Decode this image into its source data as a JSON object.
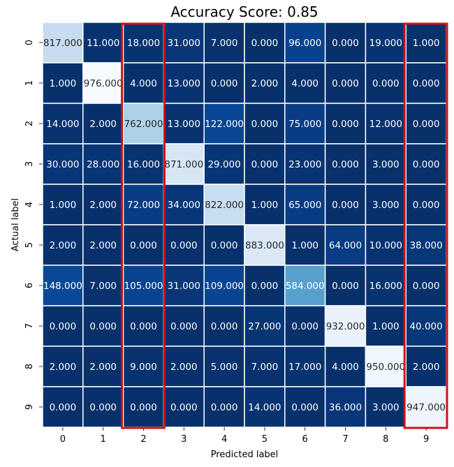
{
  "chart_data": {
    "type": "heatmap",
    "title": "Accuracy Score: 0.85",
    "xlabel": "Predicted label",
    "ylabel": "Actual label",
    "x_categories": [
      "0",
      "1",
      "2",
      "3",
      "4",
      "5",
      "6",
      "7",
      "8",
      "9"
    ],
    "y_categories": [
      "0",
      "1",
      "2",
      "3",
      "4",
      "5",
      "6",
      "7",
      "8",
      "9"
    ],
    "values": [
      [
        817,
        11,
        18,
        31,
        7,
        0,
        96,
        0,
        19,
        1
      ],
      [
        1,
        976,
        4,
        13,
        0,
        2,
        4,
        0,
        0,
        0
      ],
      [
        14,
        2,
        762,
        13,
        122,
        0,
        75,
        0,
        12,
        0
      ],
      [
        30,
        28,
        16,
        871,
        29,
        0,
        23,
        0,
        3,
        0
      ],
      [
        1,
        2,
        72,
        34,
        822,
        1,
        65,
        0,
        3,
        0
      ],
      [
        2,
        2,
        0,
        0,
        0,
        883,
        1,
        64,
        10,
        38
      ],
      [
        148,
        7,
        105,
        31,
        109,
        0,
        584,
        0,
        16,
        0
      ],
      [
        0,
        0,
        0,
        0,
        0,
        27,
        0,
        932,
        1,
        40
      ],
      [
        2,
        2,
        9,
        2,
        5,
        7,
        17,
        4,
        950,
        2
      ],
      [
        0,
        0,
        0,
        0,
        0,
        14,
        0,
        36,
        3,
        947
      ]
    ],
    "value_format": "0.000",
    "colormap": "Blues_r",
    "colorbar": false,
    "cell_border_color": "#ffffff",
    "highlighted_columns": [
      "2",
      "9"
    ],
    "highlight_color": "#d0101a"
  }
}
